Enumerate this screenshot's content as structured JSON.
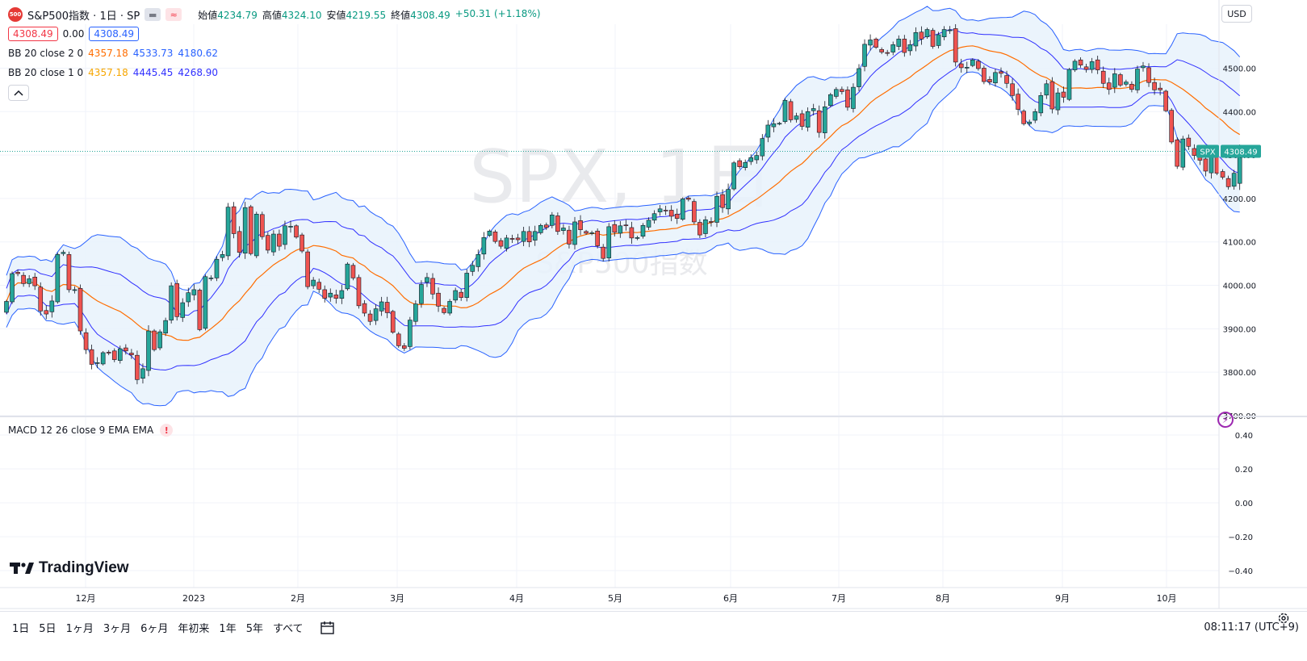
{
  "symbol": {
    "badge": "500",
    "title": "S&P500指数 · 1日 · SP",
    "ohlc": {
      "open_label": "始値",
      "open": "4234.79",
      "high_label": "高値",
      "high": "4324.10",
      "low_label": "安値",
      "low": "4219.55",
      "close_label": "終値",
      "close": "4308.49",
      "change": "+50.31 (+1.18%)"
    },
    "price_box_sell": "4308.49",
    "spread": "0.00",
    "price_box_buy": "4308.49"
  },
  "indicators": {
    "bb2": {
      "name": "BB 20 close 2 0",
      "basis": "4357.18",
      "upper": "4533.73",
      "lower": "4180.62"
    },
    "bb1": {
      "name": "BB 20 close 1 0",
      "basis": "4357.18",
      "upper": "4445.45",
      "lower": "4268.90"
    },
    "macd": {
      "name": "MACD 12 26 close 9 EMA EMA",
      "warning": "!"
    }
  },
  "currency_button": "USD",
  "watermark": {
    "ticker": "SPX, 1日",
    "name": "S&P500指数"
  },
  "last_price_label": {
    "ticker": "SPX",
    "value": "4308.49"
  },
  "brand": "TradingView",
  "ranges": [
    "1日",
    "5日",
    "1ヶ月",
    "3ヶ月",
    "6ヶ月",
    "年初来",
    "1年",
    "5年",
    "すべて"
  ],
  "clock": "08:11:17 (UTC+9)",
  "colors": {
    "up": "#26a69a",
    "down": "#ef5350",
    "basis": "#ff6d00",
    "band_outer": "#2962ff",
    "band_inner": "#3030ff",
    "fill": "#e8f2fc",
    "accent": "#2962ff"
  },
  "chart_data": {
    "type": "candlestick",
    "date_range": [
      "2022-11-24",
      "2023-10-06"
    ],
    "x_ticks": [
      "12月",
      "2023",
      "2月",
      "3月",
      "4月",
      "5月",
      "6月",
      "7月",
      "8月",
      "9月",
      "10月"
    ],
    "y_ticks": [
      "3700.00",
      "3800.00",
      "3900.00",
      "4000.00",
      "4100.00",
      "4200.00",
      "4300.00",
      "4400.00",
      "4500.00"
    ],
    "ylim": [
      3700,
      4590
    ],
    "macd_y_ticks": [
      "0.40",
      "0.20",
      "0.00",
      "−0.20",
      "−0.40"
    ],
    "macd_ylim": [
      -0.5,
      0.5
    ],
    "closes": [
      3963,
      4027,
      4027,
      4004,
      4015,
      3999,
      3941,
      3934,
      3964,
      4071,
      4076,
      3990,
      3990,
      3895,
      3852,
      3818,
      3822,
      3845,
      3844,
      3829,
      3854,
      3849,
      3840,
      3783,
      3808,
      3895,
      3852,
      3893,
      3919,
      3999,
      3928,
      3960,
      3983,
      3990,
      3898,
      4020,
      4017,
      4060,
      4071,
      4180,
      4119,
      4076,
      4179,
      4073,
      4164,
      4112,
      4081,
      4118,
      4090,
      4137,
      4136,
      4111,
      4079,
      3997,
      4012,
      3991,
      3970,
      3982,
      3970,
      3988,
      4049,
      4017,
      3953,
      3936,
      3917,
      3946,
      3962,
      3937,
      3892,
      3861,
      3855,
      3920,
      3957,
      4002,
      4018,
      3980,
      3952,
      3937,
      3963,
      3988,
      3972,
      4028,
      4046,
      4071,
      4110,
      4125,
      4101,
      4090,
      4109,
      4106,
      4105,
      4124,
      4100,
      4124,
      4138,
      4133,
      4162,
      4124,
      4132,
      4095,
      4146,
      4128,
      4120,
      4121,
      4091,
      4062,
      4135,
      4122,
      4137,
      4138,
      4109,
      4110,
      4138,
      4150,
      4165,
      4176,
      4172,
      4159,
      4154,
      4199,
      4198,
      4146,
      4116,
      4151,
      4145,
      4205,
      4179,
      4221,
      4282,
      4273,
      4283,
      4294,
      4299,
      4338,
      4369,
      4372,
      4373,
      4426,
      4381,
      4390,
      4366,
      4400,
      4407,
      4352,
      4411,
      4439,
      4451,
      4446,
      4410,
      4456,
      4499,
      4555,
      4565,
      4548,
      4537,
      4534,
      4554,
      4567,
      4536,
      4554,
      4582,
      4567,
      4589,
      4550,
      4577,
      4589,
      4588,
      4514,
      4501,
      4502,
      4519,
      4499,
      4469,
      4468,
      4490,
      4488,
      4465,
      4437,
      4405,
      4372,
      4376,
      4400,
      4437,
      4464,
      4406,
      4443,
      4433,
      4497,
      4516,
      4507,
      4497,
      4515,
      4496,
      4465,
      4451,
      4487,
      4461,
      4468,
      4451,
      4498,
      4505,
      4467,
      4450,
      4450,
      4402,
      4330,
      4274,
      4337,
      4320,
      4299,
      4288,
      4263,
      4309,
      4258,
      4249,
      4227,
      4258,
      4308
    ]
  }
}
